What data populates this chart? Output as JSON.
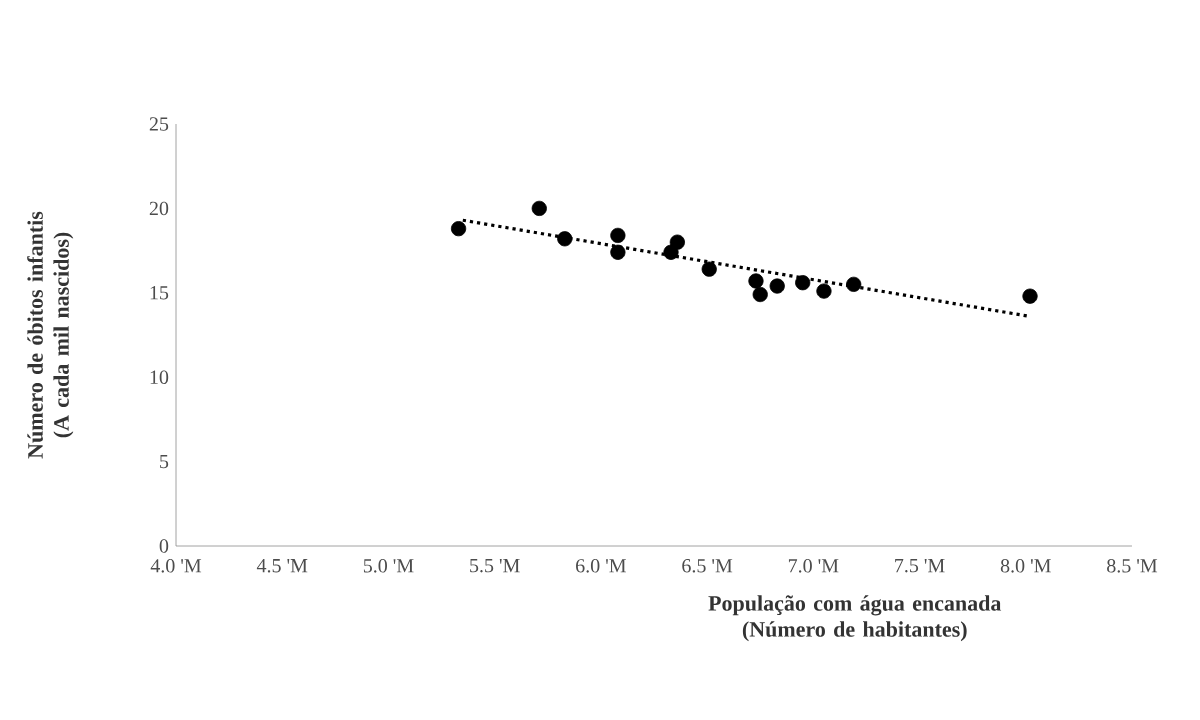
{
  "chart_data": {
    "type": "scatter",
    "xlabel": "População com água encanada (Número de habitantes)",
    "ylabel": "Número de óbitos infantis (A cada mil nascidos)",
    "xlim": [
      4.0,
      8.5
    ],
    "ylim": [
      0,
      25
    ],
    "xticks": [
      {
        "value": 4.0,
        "label": "4.0 'M"
      },
      {
        "value": 4.5,
        "label": "4.5 'M"
      },
      {
        "value": 5.0,
        "label": "5.0 'M"
      },
      {
        "value": 5.5,
        "label": "5.5 'M"
      },
      {
        "value": 6.0,
        "label": "6.0 'M"
      },
      {
        "value": 6.5,
        "label": "6.5 'M"
      },
      {
        "value": 7.0,
        "label": "7.0 'M"
      },
      {
        "value": 7.5,
        "label": "7.5 'M"
      },
      {
        "value": 8.0,
        "label": "8.0 'M"
      },
      {
        "value": 8.5,
        "label": "8.5 'M"
      }
    ],
    "yticks": [
      0,
      5,
      10,
      15,
      20,
      25
    ],
    "grid": false,
    "series": [
      {
        "color": "#000000",
        "marker": "circle",
        "x": [
          5.33,
          5.71,
          5.83,
          6.08,
          6.08,
          6.33,
          6.36,
          6.51,
          6.73,
          6.75,
          6.83,
          6.95,
          7.05,
          7.19,
          8.02
        ],
        "values": [
          18.8,
          20.0,
          18.2,
          18.4,
          17.4,
          17.4,
          18.0,
          16.4,
          15.7,
          14.9,
          15.4,
          15.6,
          15.1,
          15.5,
          14.8
        ]
      },
      {
        "type": "line",
        "color": "#000000",
        "line_style": "dotted",
        "x": [
          5.35,
          8.02
        ],
        "values": [
          19.3,
          13.6
        ]
      }
    ]
  }
}
